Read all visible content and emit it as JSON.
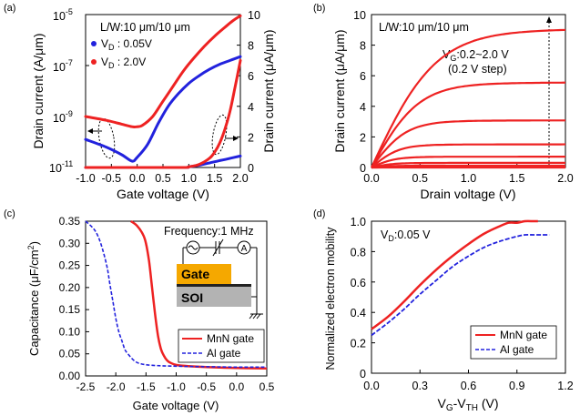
{
  "chart_data": [
    {
      "panel": "(a)",
      "type": "line",
      "annotation": "L/W:10 μm/10 μm",
      "xlabel": "Gate voltage (V)",
      "ylabel_left": "Drain current (A/μm)",
      "ylabel_right": "Drain current (μA/μm)",
      "xlim": [
        -1.0,
        2.0
      ],
      "ylim_left_log": [
        -11,
        -5
      ],
      "ylim_right": [
        0,
        10
      ],
      "x_ticks": [
        "-1.0",
        "-0.5",
        "0.0",
        "0.5",
        "1.0",
        "1.5",
        "2.0"
      ],
      "y_ticks_left": [
        {
          "base": "10",
          "exp": "-5"
        },
        {
          "base": "10",
          "exp": "-7"
        },
        {
          "base": "10",
          "exp": "-9"
        },
        {
          "base": "10",
          "exp": "-11"
        }
      ],
      "y_ticks_right": [
        "0",
        "2",
        "4",
        "6",
        "8",
        "10"
      ],
      "legend": [
        {
          "label_main": "V",
          "label_sub": "D",
          "label_rest": " : 0.05V",
          "color": "#2222dd"
        },
        {
          "label_main": "V",
          "label_sub": "D",
          "label_rest": " : 2.0V",
          "color": "#ee2222"
        }
      ],
      "series": [
        {
          "name": "VD 0.05V log",
          "axis": "left-log",
          "color": "#2222dd",
          "x": [
            -1.0,
            -0.6,
            -0.3,
            -0.1,
            0.0,
            0.2,
            0.4,
            0.6,
            0.8,
            1.0,
            1.2,
            1.4,
            1.6,
            1.8,
            2.0
          ],
          "y": [
            -9.9,
            -10.2,
            -10.5,
            -10.75,
            -10.6,
            -10.1,
            -9.3,
            -8.6,
            -8.1,
            -7.7,
            -7.4,
            -7.15,
            -6.95,
            -6.8,
            -6.65
          ]
        },
        {
          "name": "VD 2.0V log",
          "axis": "left-log",
          "color": "#ee2222",
          "x": [
            -1.0,
            -0.6,
            -0.3,
            -0.1,
            0.0,
            0.1,
            0.3,
            0.5,
            0.7,
            0.9,
            1.1,
            1.3,
            1.5,
            1.7,
            1.85,
            2.0
          ],
          "y": [
            -9.0,
            -9.15,
            -9.3,
            -9.4,
            -9.4,
            -9.35,
            -9.0,
            -8.4,
            -7.8,
            -7.2,
            -6.7,
            -6.25,
            -5.85,
            -5.5,
            -5.25,
            -5.05
          ]
        },
        {
          "name": "VD 0.05V linear",
          "axis": "right",
          "color": "#2222dd",
          "x": [
            -1.0,
            0.8,
            1.0,
            1.2,
            1.4,
            1.6,
            1.8,
            2.0
          ],
          "y": [
            0,
            0,
            0.05,
            0.15,
            0.3,
            0.45,
            0.6,
            0.75
          ]
        },
        {
          "name": "VD 2.0V linear",
          "axis": "right",
          "color": "#ee2222",
          "x": [
            -1.0,
            0.8,
            1.0,
            1.2,
            1.4,
            1.5,
            1.6,
            1.7,
            1.8,
            1.9,
            2.0
          ],
          "y": [
            0,
            0,
            0.05,
            0.2,
            0.6,
            1.0,
            1.6,
            2.5,
            3.7,
            5.3,
            7.0
          ]
        }
      ]
    },
    {
      "panel": "(b)",
      "type": "line",
      "annotation": "L/W:10 μm/10 μm",
      "step_label_main": "V",
      "step_label_sub": "G",
      "step_label_rest": ":0.2~2.0 V",
      "step_label_line2": "(0.2 V step)",
      "xlabel": "Drain voltage (V)",
      "ylabel": "Drain current (μA/μm)",
      "xlim": [
        0,
        2.0
      ],
      "ylim": [
        0,
        10
      ],
      "x_ticks": [
        "0.0",
        "0.5",
        "1.0",
        "1.5",
        "2.0"
      ],
      "y_ticks": [
        "0",
        "2",
        "4",
        "6",
        "8",
        "10"
      ],
      "color": "#ee2222",
      "saturation_values": [
        8.95,
        5.5,
        3.05,
        1.5,
        0.7,
        0.3,
        0.12,
        0.04,
        0.01,
        0.0
      ]
    },
    {
      "panel": "(c)",
      "type": "line",
      "annotation": "Frequency:1 MHz",
      "inset_gate_label": "Gate",
      "inset_soi_label": "SOI",
      "inset_meter_label": "A",
      "xlabel": "Gate voltage (V)",
      "ylabel_main": "Capacitance (μF/cm",
      "ylabel_sup": "2",
      "ylabel_end": ")",
      "xlim": [
        -2.5,
        0.5
      ],
      "ylim": [
        0,
        0.35
      ],
      "x_ticks": [
        "-2.5",
        "-2.0",
        "-1.5",
        "-1.0",
        "-0.5",
        "0.0",
        "0.5"
      ],
      "y_ticks": [
        "0.00",
        "0.05",
        "0.10",
        "0.15",
        "0.20",
        "0.25",
        "0.30",
        "0.35"
      ],
      "legend": [
        {
          "label": "MnN gate",
          "color": "#ee2222",
          "dash": false
        },
        {
          "label": "Al gate",
          "color": "#2222dd",
          "dash": true
        }
      ],
      "series": [
        {
          "name": "MnN gate",
          "color": "#ee2222",
          "x": [
            -1.75,
            -1.65,
            -1.55,
            -1.5,
            -1.45,
            -1.4,
            -1.35,
            -1.3,
            -1.25,
            -1.2,
            -1.15,
            -1.1,
            -1.0,
            -0.8,
            -0.5,
            0.0,
            0.5
          ],
          "y": [
            0.35,
            0.34,
            0.32,
            0.3,
            0.26,
            0.2,
            0.14,
            0.09,
            0.06,
            0.045,
            0.035,
            0.03,
            0.025,
            0.022,
            0.02,
            0.018,
            0.017
          ]
        },
        {
          "name": "Al gate",
          "color": "#2222dd",
          "x": [
            -2.5,
            -2.35,
            -2.25,
            -2.15,
            -2.1,
            -2.05,
            -2.0,
            -1.95,
            -1.9,
            -1.85,
            -1.8,
            -1.7,
            -1.6,
            -1.4,
            -1.0,
            -0.5,
            0.0,
            0.5
          ],
          "y": [
            0.35,
            0.33,
            0.3,
            0.25,
            0.21,
            0.17,
            0.13,
            0.1,
            0.08,
            0.06,
            0.05,
            0.035,
            0.028,
            0.024,
            0.022,
            0.021,
            0.02,
            0.02
          ]
        }
      ]
    },
    {
      "panel": "(d)",
      "type": "line",
      "annotation_main": "V",
      "annotation_sub": "D",
      "annotation_rest": ":0.05 V",
      "xlabel_main": "V",
      "xlabel_sub1": "G",
      "xlabel_mid": "-V",
      "xlabel_sub2": "TH",
      "xlabel_end": " (V)",
      "ylabel": "Normalized electron mobility",
      "xlim": [
        0,
        1.2
      ],
      "ylim": [
        0,
        1.0
      ],
      "x_ticks": [
        "0.0",
        "0.3",
        "0.6",
        "0.9",
        "1.2"
      ],
      "y_ticks": [
        "0",
        "0.2",
        "0.4",
        "0.6",
        "0.8",
        "1.0"
      ],
      "legend": [
        {
          "label": "MnN gate",
          "color": "#ee2222",
          "dash": false
        },
        {
          "label": "Al gate",
          "color": "#2222dd",
          "dash": true
        }
      ],
      "series": [
        {
          "name": "MnN gate",
          "color": "#ee2222",
          "x": [
            0.0,
            0.1,
            0.2,
            0.3,
            0.4,
            0.5,
            0.6,
            0.7,
            0.8,
            0.85,
            0.9,
            0.95,
            1.0,
            1.03
          ],
          "y": [
            0.29,
            0.37,
            0.47,
            0.58,
            0.68,
            0.77,
            0.85,
            0.92,
            0.97,
            0.99,
            0.99,
            1.0,
            1.0,
            1.0
          ]
        },
        {
          "name": "Al gate",
          "color": "#2222dd",
          "x": [
            0.0,
            0.1,
            0.2,
            0.3,
            0.4,
            0.5,
            0.6,
            0.7,
            0.8,
            0.9,
            0.95,
            1.0,
            1.05,
            1.1
          ],
          "y": [
            0.25,
            0.33,
            0.42,
            0.52,
            0.61,
            0.7,
            0.77,
            0.83,
            0.87,
            0.9,
            0.91,
            0.91,
            0.91,
            0.91
          ]
        }
      ]
    }
  ]
}
